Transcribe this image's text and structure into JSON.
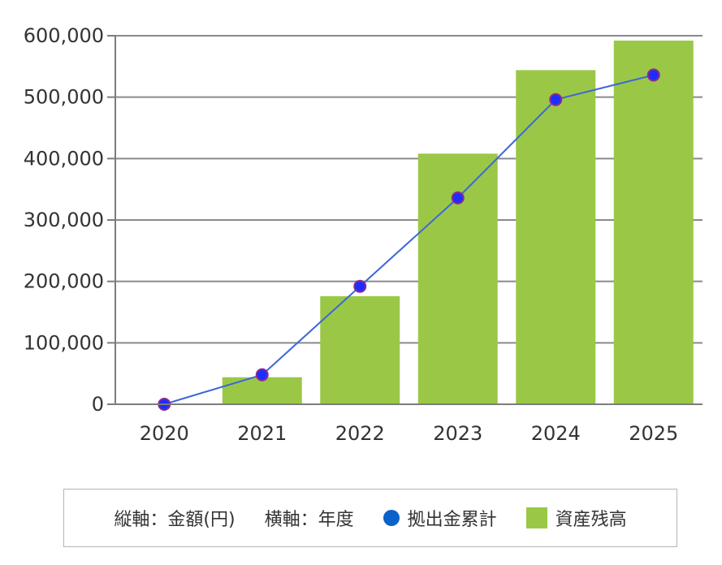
{
  "chart_data": {
    "type": "bar",
    "categories": [
      "2020",
      "2021",
      "2022",
      "2023",
      "2024",
      "2025"
    ],
    "series": [
      {
        "name": "資産残高",
        "type": "bar",
        "values": [
          0,
          44000,
          176000,
          408000,
          544000,
          592000
        ]
      },
      {
        "name": "拠出金累計",
        "type": "line",
        "values": [
          0,
          48000,
          192000,
          336000,
          496000,
          536000
        ]
      }
    ],
    "ylim": [
      0,
      600000
    ],
    "yticks": [
      0,
      100000,
      200000,
      300000,
      400000,
      500000,
      600000
    ],
    "ytick_labels": [
      "0",
      "100,000",
      "200,000",
      "300,000",
      "400,000",
      "500,000",
      "600,000"
    ],
    "grid": true,
    "legend_position": "bottom"
  },
  "legend": {
    "vertical_axis": "縦軸：金額(円)",
    "horizontal_axis": "横軸：年度",
    "line_label": "拠出金累計",
    "bar_label": "資産残高"
  },
  "colors": {
    "bar": "#9ac846",
    "line": "#3d67d8",
    "point_fill": "#1f2cff",
    "point_stroke": "#8b2b8f",
    "grid": "#8a8a8a",
    "axis": "#7c7c7c"
  }
}
